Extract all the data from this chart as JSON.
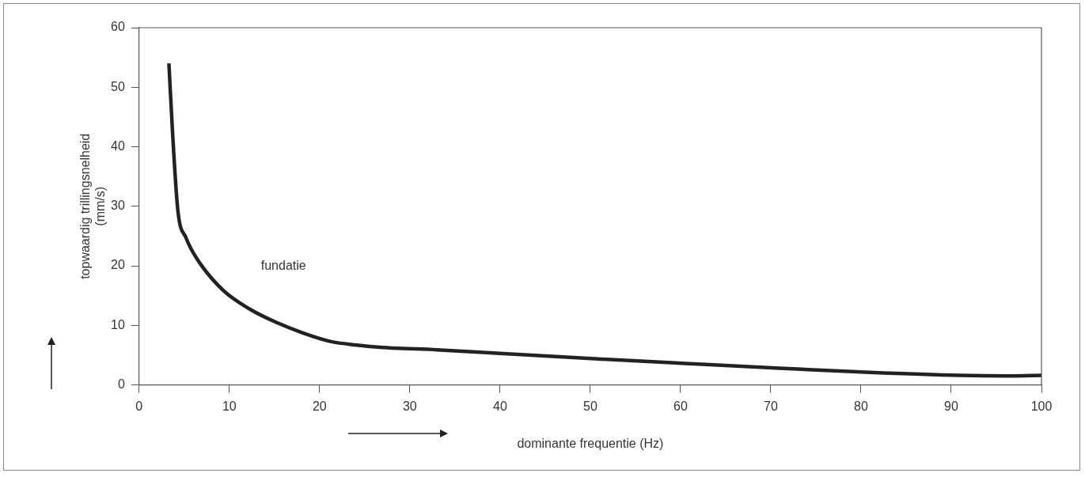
{
  "chart_data": {
    "type": "line",
    "xlabel": "dominante frequentie (Hz)",
    "ylabel": "topwaardig trillingsnelheid\n(mm/s)",
    "annotations": [
      "fundatie"
    ],
    "series": [
      {
        "color": "#222222",
        "x": [
          3.3,
          3.7,
          4.3,
          5.2,
          6.4,
          9.3,
          12.3,
          15.2,
          18.2,
          21.2,
          24.1,
          27,
          33,
          40,
          50.5,
          60.6,
          71,
          81,
          91,
          96.6,
          100
        ],
        "values": [
          54,
          42.5,
          29.2,
          24.7,
          21.2,
          15.9,
          12.7,
          10.5,
          8.7,
          7.3,
          6.7,
          6.3,
          5.9,
          5.3,
          4.4,
          3.6,
          2.8,
          2.1,
          1.6,
          1.5,
          1.6
        ]
      }
    ],
    "xlim": [
      0,
      100
    ],
    "xticks": [
      0,
      10,
      20,
      30,
      40,
      50,
      60,
      70,
      80,
      90,
      100
    ],
    "ylim": [
      0,
      60
    ],
    "yticks": [
      0,
      10,
      20,
      30,
      40,
      50,
      60
    ],
    "grid": false,
    "legend": false,
    "marker": "none",
    "line_style": "solid"
  }
}
